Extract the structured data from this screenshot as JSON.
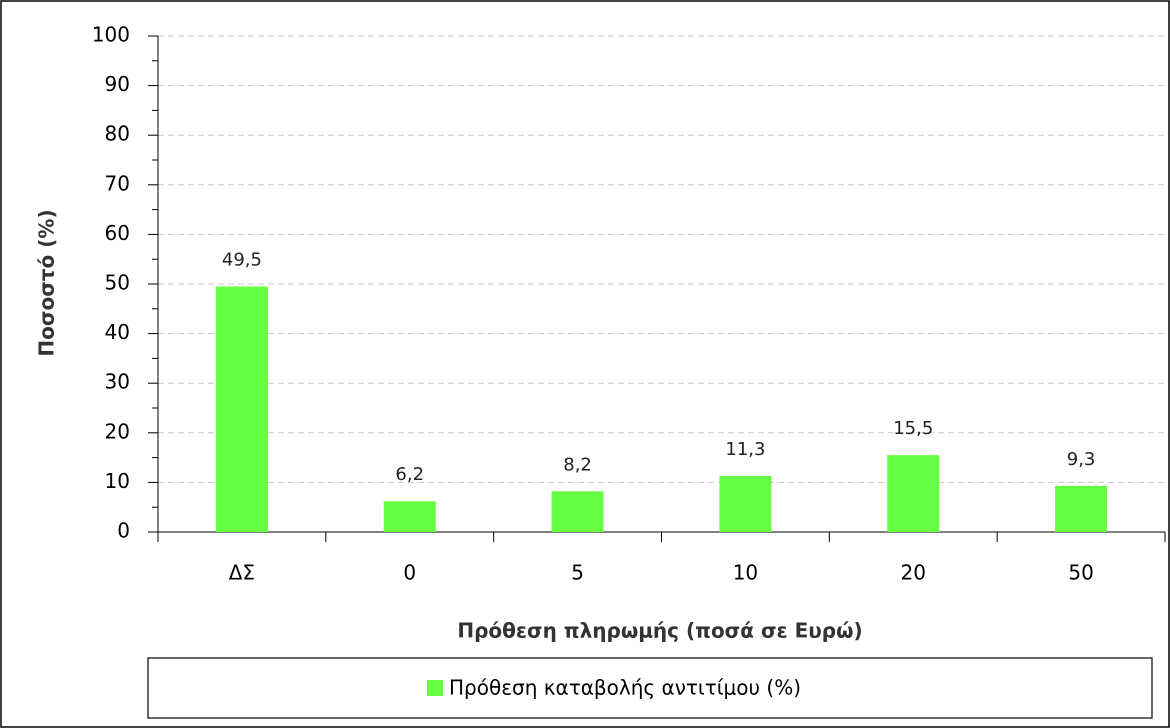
{
  "chart_data": {
    "type": "bar",
    "categories": [
      "ΔΣ",
      "0",
      "5",
      "10",
      "20",
      "50"
    ],
    "series": [
      {
        "name": "Πρόθεση καταβολής αντιτίμου (%)",
        "color": "#66ff44",
        "values": [
          49.5,
          6.2,
          8.2,
          11.3,
          15.5,
          9.3
        ],
        "value_labels": [
          "49,5",
          "6,2",
          "8,2",
          "11,3",
          "15,5",
          "9,3"
        ]
      }
    ],
    "x_label": "Πρόθεση πληρωμής (ποσά σε  Ευρώ)",
    "y_label": "Ποσοστό (%)",
    "ylim": [
      0,
      100
    ],
    "yticks": [
      0,
      10,
      20,
      30,
      40,
      50,
      60,
      70,
      80,
      90,
      100
    ],
    "yminorticks": [
      5,
      15,
      25,
      35,
      45,
      55,
      65,
      75,
      85,
      95
    ],
    "grid": true,
    "legend": "bottom"
  }
}
